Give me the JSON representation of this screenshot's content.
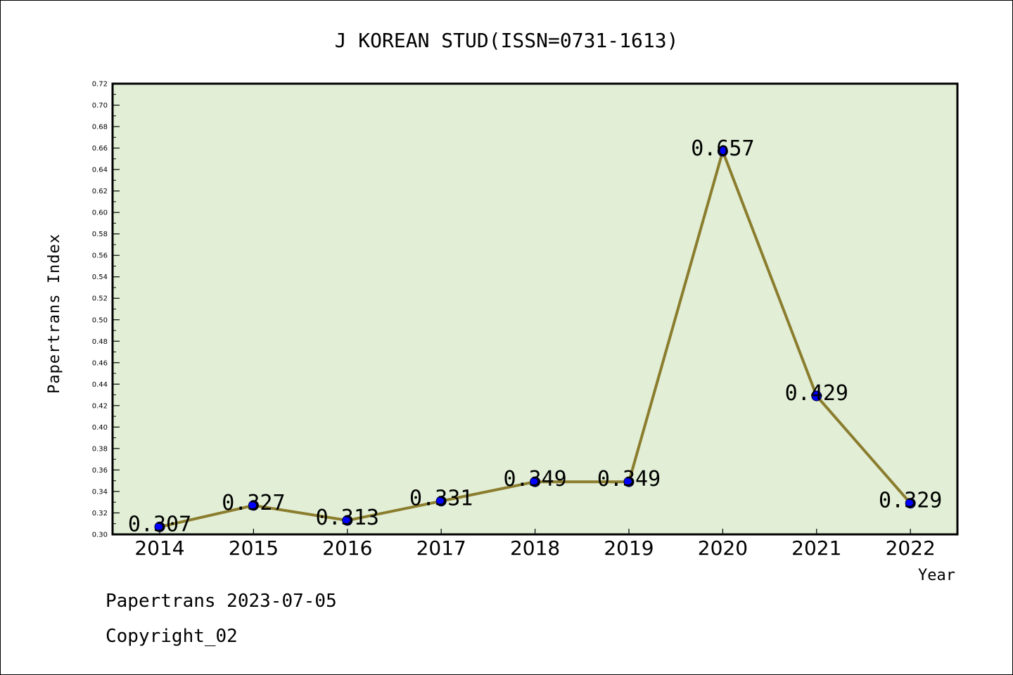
{
  "chart_data": {
    "type": "line",
    "title": "J KOREAN STUD(ISSN=0731-1613)",
    "xlabel": "Year",
    "ylabel": "Papertrans Index",
    "categories": [
      "2014",
      "2015",
      "2016",
      "2017",
      "2018",
      "2019",
      "2020",
      "2021",
      "2022"
    ],
    "series": [
      {
        "values": [
          0.307,
          0.327,
          0.313,
          0.331,
          0.349,
          0.349,
          0.657,
          0.429,
          0.329
        ]
      }
    ],
    "data_labels": [
      "0.307",
      "0.327",
      "0.313",
      "0.331",
      "0.349",
      "0.349",
      "0.657",
      "0.429",
      "0.329"
    ],
    "ylim": [
      0.3,
      0.72
    ],
    "ytick_step": 0.02,
    "yticks": [
      "0.30",
      "0.32",
      "0.34",
      "0.36",
      "0.38",
      "0.40",
      "0.42",
      "0.44",
      "0.46",
      "0.48",
      "0.50",
      "0.52",
      "0.54",
      "0.56",
      "0.58",
      "0.60",
      "0.62",
      "0.64",
      "0.66",
      "0.68",
      "0.70",
      "0.72"
    ],
    "grid": false,
    "legend": "none",
    "colors": {
      "plot_background": "#e2efd6",
      "line": "#8b7d2e",
      "marker": "#0000ff",
      "axis": "#000000"
    }
  },
  "footer": {
    "line1": "Papertrans 2023-07-05",
    "line2": "Copyright_02"
  }
}
